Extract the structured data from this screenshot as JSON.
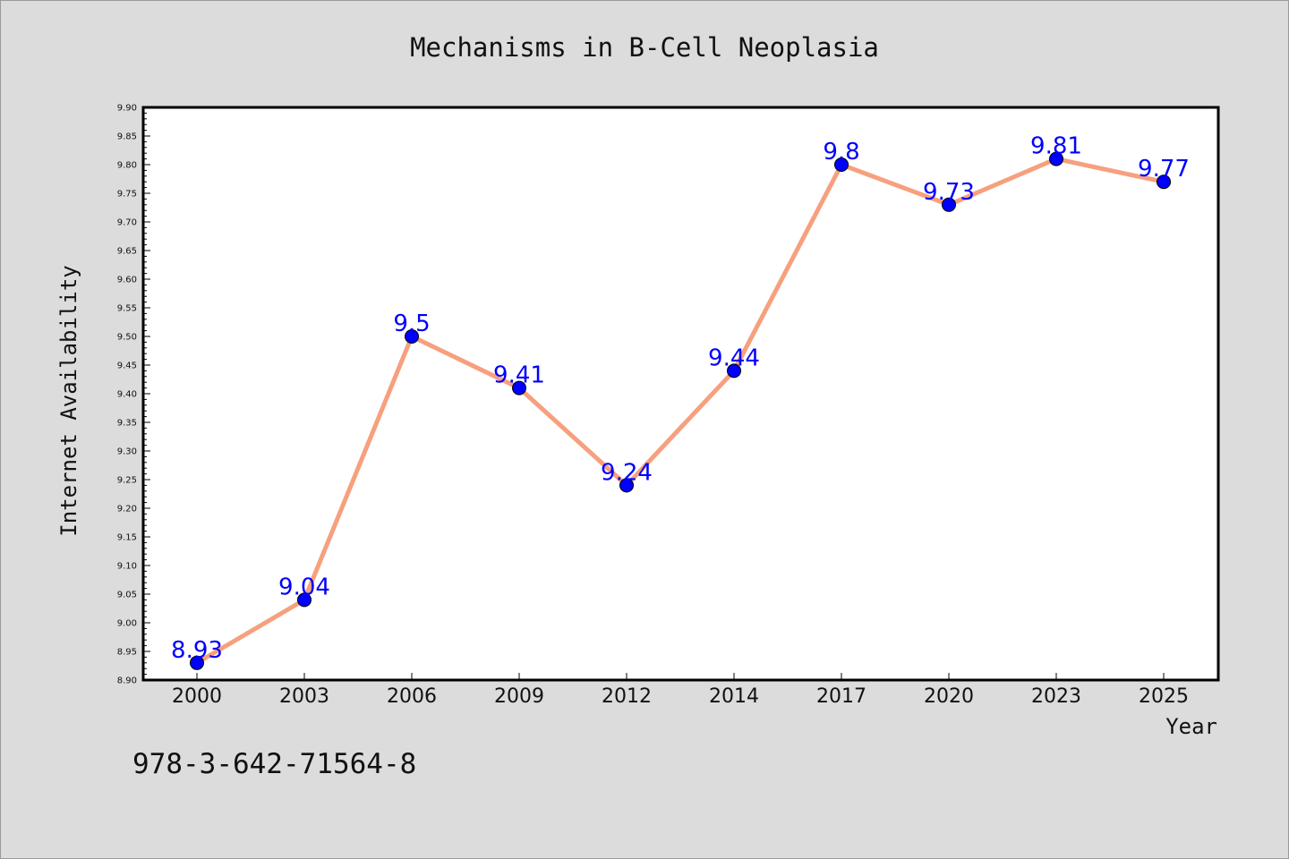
{
  "chart_data": {
    "type": "line",
    "title": "Mechanisms in B-Cell Neoplasia",
    "xlabel": "Year",
    "ylabel": "Internet Availability",
    "categories": [
      "2000",
      "2003",
      "2006",
      "2009",
      "2012",
      "2014",
      "2017",
      "2020",
      "2023",
      "2025"
    ],
    "series": [
      {
        "values": [
          8.93,
          9.04,
          9.5,
          9.41,
          9.24,
          9.44,
          9.8,
          9.73,
          9.81,
          9.77
        ],
        "line_color": "#f6a07e",
        "marker_color": "#0000ff"
      }
    ],
    "data_labels": [
      "8.93",
      "9.04",
      "9.5",
      "9.41",
      "9.24",
      "9.44",
      "9.8",
      "9.73",
      "9.81",
      "9.77"
    ],
    "data_label_color": "#0000ff",
    "ylim": [
      8.9,
      9.9
    ],
    "yticks": [
      "8.90",
      "8.95",
      "9.00",
      "9.05",
      "9.10",
      "9.15",
      "9.20",
      "9.25",
      "9.30",
      "9.35",
      "9.40",
      "9.45",
      "9.50",
      "9.55",
      "9.60",
      "9.65",
      "9.70",
      "9.75",
      "9.80",
      "9.85",
      "9.90"
    ],
    "grid": false,
    "legend": false
  },
  "footer": {
    "isbn": "978-3-642-71564-8"
  },
  "colors": {
    "background": "#dcdcdc",
    "plot_area": "#ffffff"
  }
}
